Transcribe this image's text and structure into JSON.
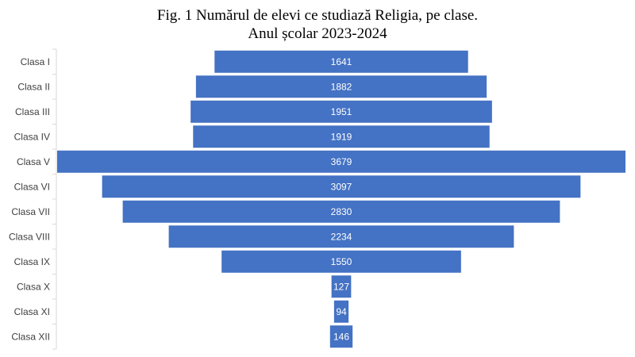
{
  "title_line1": "Fig. 1 Numărul de elevi ce studiază Religia, pe clase.",
  "title_line2": "Anul școlar 2023-2024",
  "colors": {
    "bar": "#4472C4",
    "axis": "#D9D9D9",
    "label": "#404040"
  },
  "chart_data": {
    "type": "bar",
    "orientation": "horizontal",
    "style": "funnel (bars centered)",
    "categories": [
      "Clasa I",
      "Clasa II",
      "Clasa III",
      "Clasa IV",
      "Clasa V",
      "Clasa VI",
      "Clasa VII",
      "Clasa VIII",
      "Clasa IX",
      "Clasa X",
      "Clasa XI",
      "Clasa XII"
    ],
    "values": [
      1641,
      1882,
      1951,
      1919,
      3679,
      3097,
      2830,
      2234,
      1550,
      127,
      94,
      146
    ],
    "data_labels": true,
    "grid": false,
    "legend": "none"
  }
}
